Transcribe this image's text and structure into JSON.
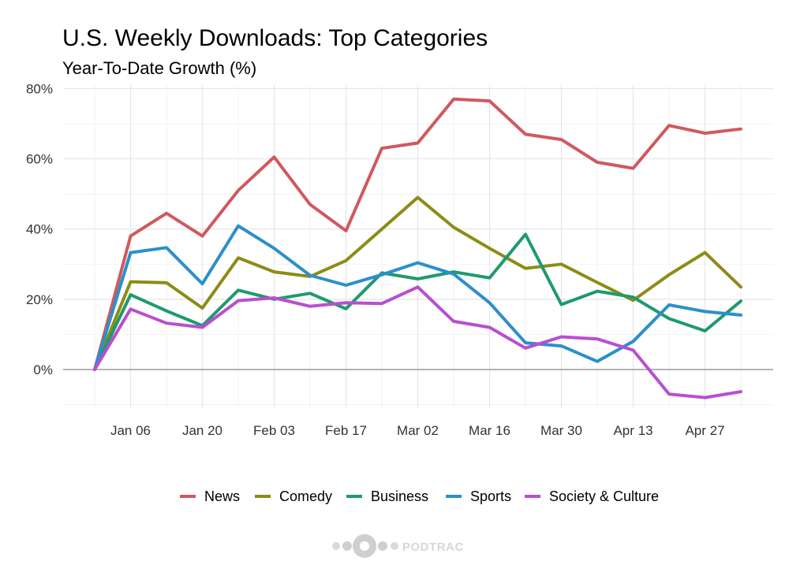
{
  "chart_data": {
    "type": "line",
    "title": "U.S. Weekly Downloads: Top Categories",
    "subtitle": "Year-To-Date Growth (%)",
    "xlabel": "",
    "ylabel": "",
    "x": [
      "Dec 30",
      "Jan 06",
      "Jan 13",
      "Jan 20",
      "Jan 27",
      "Feb 03",
      "Feb 10",
      "Feb 17",
      "Feb 24",
      "Mar 02",
      "Mar 09",
      "Mar 16",
      "Mar 23",
      "Mar 30",
      "Apr 06",
      "Apr 13",
      "Apr 20",
      "Apr 27",
      "May 04"
    ],
    "x_tick_labels": [
      "Jan 06",
      "Jan 20",
      "Feb 03",
      "Feb 17",
      "Mar 02",
      "Mar 16",
      "Mar 30",
      "Apr 13",
      "Apr 27"
    ],
    "y_tick_labels": [
      "0%",
      "20%",
      "40%",
      "60%",
      "80%"
    ],
    "ylim": [
      -0.11,
      0.81
    ],
    "y_ticks": [
      0,
      0.2,
      0.4,
      0.6,
      0.8
    ],
    "grid": true,
    "legend_position": "bottom",
    "series": [
      {
        "name": "News",
        "color": "#d0595e",
        "values": [
          0,
          0.38,
          0.445,
          0.38,
          0.51,
          0.605,
          0.47,
          0.395,
          0.63,
          0.645,
          0.77,
          0.765,
          0.67,
          0.655,
          0.59,
          0.573,
          0.695,
          0.673,
          0.685
        ]
      },
      {
        "name": "Comedy",
        "color": "#8c8c17",
        "values": [
          0,
          0.25,
          0.247,
          0.175,
          0.318,
          0.278,
          0.265,
          0.31,
          0.4,
          0.49,
          0.405,
          0.345,
          0.288,
          0.3,
          0.248,
          0.197,
          0.27,
          0.333,
          0.235
        ]
      },
      {
        "name": "Business",
        "color": "#1e9a6e",
        "values": [
          0,
          0.213,
          0.167,
          0.125,
          0.226,
          0.2,
          0.217,
          0.173,
          0.275,
          0.258,
          0.278,
          0.261,
          0.385,
          0.185,
          0.223,
          0.206,
          0.145,
          0.11,
          0.195
        ]
      },
      {
        "name": "Sports",
        "color": "#2b8fcc",
        "values": [
          0,
          0.333,
          0.347,
          0.244,
          0.409,
          0.345,
          0.268,
          0.24,
          0.27,
          0.304,
          0.272,
          0.19,
          0.076,
          0.067,
          0.023,
          0.08,
          0.184,
          0.165,
          0.155
        ]
      },
      {
        "name": "Society & Culture",
        "color": "#b84fd0",
        "values": [
          0,
          0.172,
          0.132,
          0.12,
          0.196,
          0.204,
          0.18,
          0.19,
          0.188,
          0.235,
          0.137,
          0.12,
          0.061,
          0.093,
          0.087,
          0.055,
          -0.07,
          -0.08,
          -0.063
        ]
      }
    ]
  },
  "watermark": {
    "text": "PODTRAC"
  }
}
